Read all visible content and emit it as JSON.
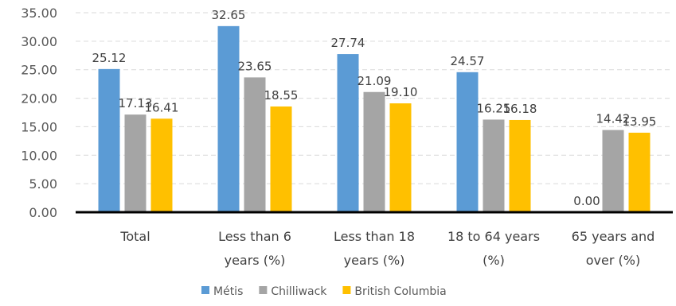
{
  "chart_data": {
    "type": "bar",
    "title": "",
    "xlabel": "",
    "ylabel": "",
    "ylim": [
      0,
      35
    ],
    "yticks": [
      "0.00",
      "5.00",
      "10.00",
      "15.00",
      "20.00",
      "25.00",
      "30.00",
      "35.00"
    ],
    "grid": "horizontal-dashed",
    "legend_position": "bottom",
    "categories": [
      [
        "Total"
      ],
      [
        "Less than 6",
        "years (%)"
      ],
      [
        "Less than 18",
        "years (%)"
      ],
      [
        "18 to 64 years",
        "(%)"
      ],
      [
        "65 years and",
        "over (%)"
      ]
    ],
    "series": [
      {
        "name": "Métis",
        "color": "#5B9BD5",
        "values": [
          25.12,
          32.65,
          27.74,
          24.57,
          0.0
        ],
        "labels": [
          "25.12",
          "32.65",
          "27.74",
          "24.57",
          "0.00"
        ]
      },
      {
        "name": "Chilliwack",
        "color": "#A5A5A5",
        "values": [
          17.13,
          23.65,
          21.09,
          16.25,
          14.42
        ],
        "labels": [
          "17.13",
          "23.65",
          "21.09",
          "16.25",
          "14.42"
        ]
      },
      {
        "name": "British Columbia",
        "color": "#FFC000",
        "values": [
          16.41,
          18.55,
          19.1,
          16.18,
          13.95
        ],
        "labels": [
          "16.41",
          "18.55",
          "19.10",
          "16.18",
          "13.95"
        ]
      }
    ]
  }
}
